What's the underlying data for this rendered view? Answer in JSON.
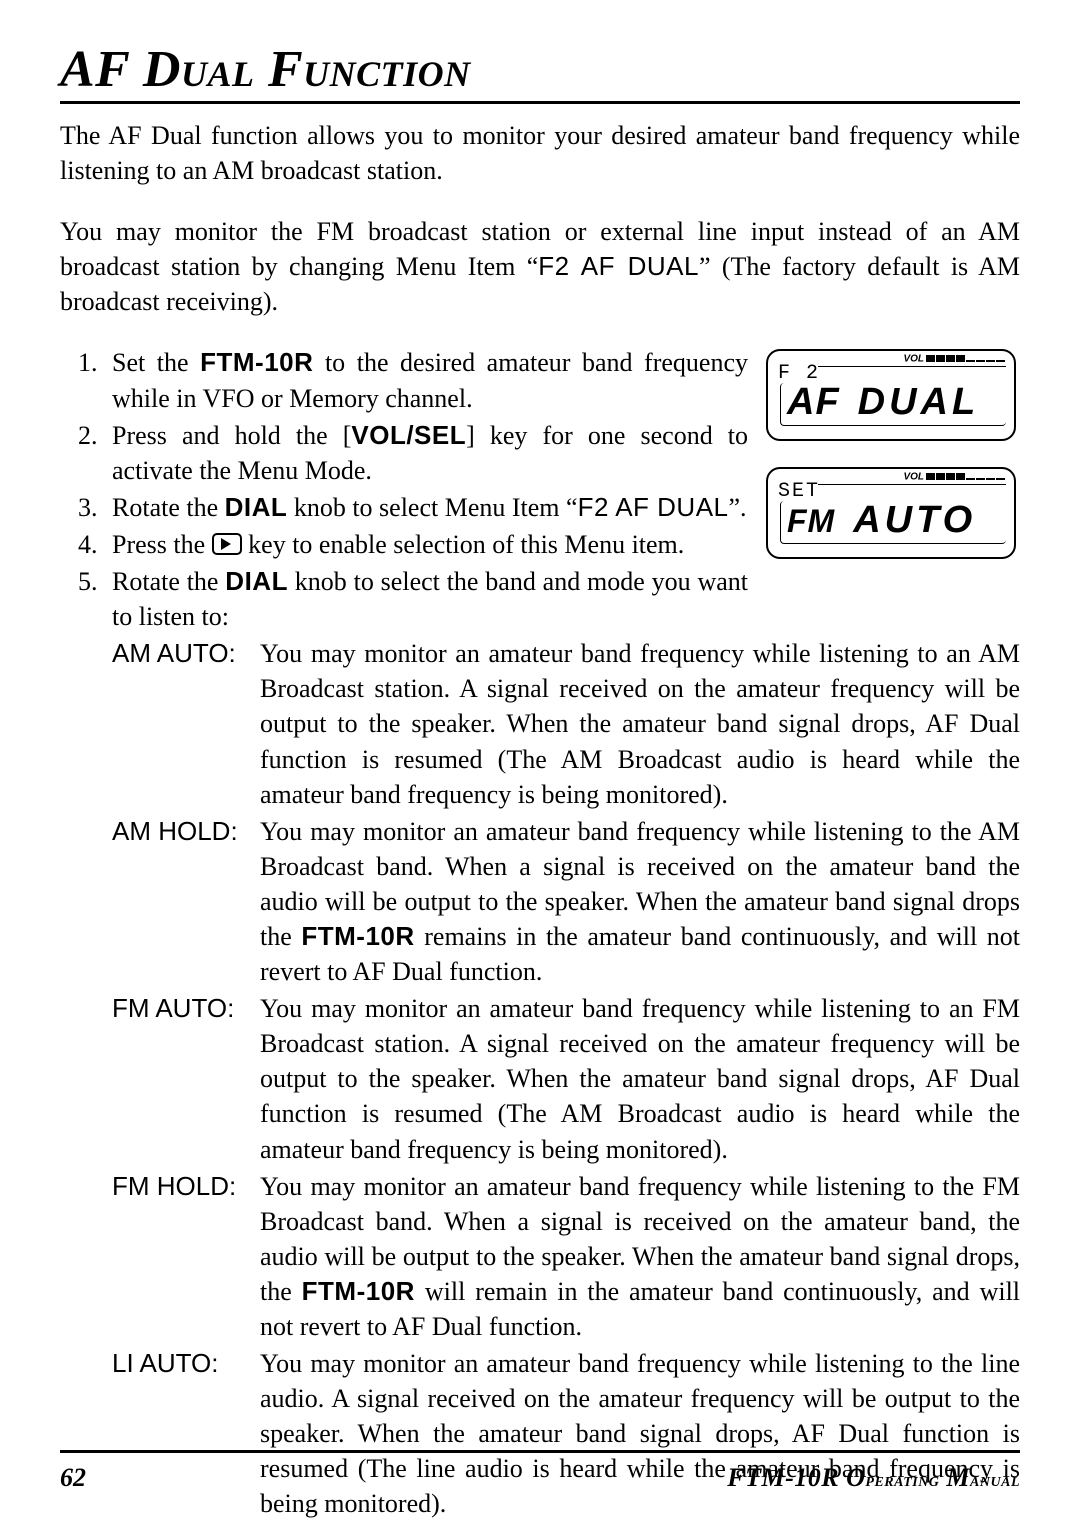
{
  "title": "AF Dual Function",
  "intro1": "The AF Dual function allows you to monitor your desired amateur band frequency while listening to an AM broadcast station.",
  "intro2_a": "You may monitor the FM broadcast station or external line input instead of an AM broadcast station by changing Menu Item “",
  "intro2_menu": "F2 AF DUAL",
  "intro2_b": "” (The factory default is AM broadcast receiving).",
  "steps": {
    "s1_a": "Set the ",
    "s1_dev": "FTM-10R",
    "s1_b": " to the desired amateur band frequency while in VFO or Memory channel.",
    "s2_a": "Press and hold the [",
    "s2_key": "VOL/SEL",
    "s2_b": "] key for one second to activate the Menu Mode.",
    "s3_a": "Rotate the ",
    "s3_knob": "DIAL",
    "s3_b": " knob to select Menu Item “",
    "s3_menu": "F2 AF DUAL",
    "s3_c": "”.",
    "s4_a": "Press the ",
    "s4_b": " key to enable selection of this Menu item.",
    "s5_a": "Rotate the ",
    "s5_knob": "DIAL",
    "s5_b": " knob to select the band and mode you want to listen to:"
  },
  "lcd1": {
    "vol_label": "VOL",
    "filled_bars": 4,
    "empty_bars": 4,
    "line1_small": "F 2",
    "line2_left": "AF",
    "line2_right": "DUAL"
  },
  "lcd2": {
    "vol_label": "VOL",
    "filled_bars": 4,
    "empty_bars": 4,
    "line1_small": "SET",
    "line2_left": "FM",
    "line2_right": "AUTO"
  },
  "modes": [
    {
      "label": "AM AUTO:",
      "text_a": "You may monitor an amateur band frequency while listening to an AM Broadcast station.  A signal received on the amateur frequency will be output to the speaker. When the amateur band signal drops, AF Dual function is resumed (The AM Broadcast audio is heard while the amateur band frequency is being monitored)."
    },
    {
      "label": "AM HOLD:",
      "text_a": "You may monitor an amateur band frequency while listening to the AM Broadcast band. When a signal is received on the amateur band the audio will be output to the speaker. When the amateur band signal drops the ",
      "bold": "FTM-10R",
      "text_b": " remains in the amateur band continuously, and will not revert to AF Dual function."
    },
    {
      "label": "FM AUTO:",
      "text_a": "You may monitor an amateur band frequency while listening to an FM Broadcast station.  A signal received on the amateur frequency will be output to the speaker. When the amateur band signal drops, AF Dual function is resumed (The AM Broadcast audio is heard while the amateur band frequency is being monitored)."
    },
    {
      "label": "FM HOLD:",
      "text_a": "You may monitor an amateur band frequency while listening to the FM Broadcast band. When a signal is received on the amateur band, the audio will be output to the speaker. When the amateur band signal drops, the ",
      "bold": "FTM-10R",
      "text_b": " will remain in the amateur band continuously, and will not revert to AF Dual function."
    },
    {
      "label": "LI AUTO:",
      "text_a": "You may monitor an amateur band frequency while listening to the line audio.  A signal received on the amateur frequency will be output to the speaker. When the amateur band signal drops, AF Dual function is resumed (The line audio is heard while the amateur band frequency is being monitored)."
    }
  ],
  "footer": {
    "page": "62",
    "manual_a": "FTM-10R O",
    "manual_b": "perating",
    "manual_c": " M",
    "manual_d": "anual"
  }
}
